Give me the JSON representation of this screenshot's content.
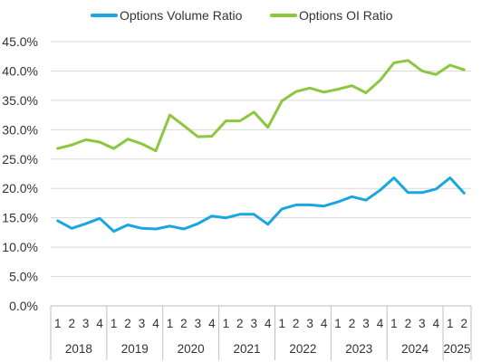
{
  "chart_data": {
    "type": "line",
    "title": "",
    "xlabel": "",
    "ylabel": "",
    "ylim": [
      0,
      45
    ],
    "y_tick_step": 5,
    "y_tick_format": "percent_1dp",
    "grid": "horizontal",
    "legend_position": "top",
    "colors": {
      "volume": "#1aa6e0",
      "oi": "#8dc63f",
      "grid": "#d9d9d9",
      "axis": "#bfbfbf"
    },
    "categories": [
      {
        "year": "2018",
        "q": "1"
      },
      {
        "year": "2018",
        "q": "2"
      },
      {
        "year": "2018",
        "q": "3"
      },
      {
        "year": "2018",
        "q": "4"
      },
      {
        "year": "2019",
        "q": "1"
      },
      {
        "year": "2019",
        "q": "2"
      },
      {
        "year": "2019",
        "q": "3"
      },
      {
        "year": "2019",
        "q": "4"
      },
      {
        "year": "2020",
        "q": "1"
      },
      {
        "year": "2020",
        "q": "2"
      },
      {
        "year": "2020",
        "q": "3"
      },
      {
        "year": "2020",
        "q": "4"
      },
      {
        "year": "2021",
        "q": "1"
      },
      {
        "year": "2021",
        "q": "2"
      },
      {
        "year": "2021",
        "q": "3"
      },
      {
        "year": "2021",
        "q": "4"
      },
      {
        "year": "2022",
        "q": "1"
      },
      {
        "year": "2022",
        "q": "2"
      },
      {
        "year": "2022",
        "q": "3"
      },
      {
        "year": "2022",
        "q": "4"
      },
      {
        "year": "2023",
        "q": "1"
      },
      {
        "year": "2023",
        "q": "2"
      },
      {
        "year": "2023",
        "q": "3"
      },
      {
        "year": "2023",
        "q": "4"
      },
      {
        "year": "2024",
        "q": "1"
      },
      {
        "year": "2024",
        "q": "2"
      },
      {
        "year": "2024",
        "q": "3"
      },
      {
        "year": "2024",
        "q": "4"
      },
      {
        "year": "2025",
        "q": "1"
      },
      {
        "year": "2025",
        "q": "2"
      }
    ],
    "years": [
      "2018",
      "2019",
      "2020",
      "2021",
      "2022",
      "2023",
      "2024",
      "2025"
    ],
    "series": [
      {
        "name": "Options Volume Ratio",
        "color_key": "volume",
        "values": [
          14.5,
          13.2,
          14.0,
          14.9,
          12.7,
          13.8,
          13.2,
          13.1,
          13.6,
          13.1,
          14.0,
          15.3,
          15.0,
          15.6,
          15.6,
          13.9,
          16.5,
          17.2,
          17.2,
          17.0,
          17.7,
          18.6,
          18.0,
          19.7,
          21.8,
          19.3,
          19.3,
          19.9,
          21.8,
          19.2
        ]
      },
      {
        "name": "Options OI Ratio",
        "color_key": "oi",
        "values": [
          26.8,
          27.4,
          28.3,
          27.9,
          26.8,
          28.4,
          27.6,
          26.4,
          32.5,
          30.7,
          28.8,
          28.9,
          31.5,
          31.5,
          33.0,
          30.4,
          34.9,
          36.5,
          37.1,
          36.4,
          36.9,
          37.5,
          36.3,
          38.4,
          41.4,
          41.8,
          40.0,
          39.4,
          41.0,
          40.2
        ]
      }
    ]
  }
}
